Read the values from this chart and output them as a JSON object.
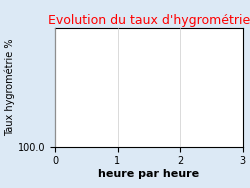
{
  "title": "Evolution du taux d'hygrométrie",
  "title_color": "#ff0000",
  "xlabel": "heure par heure",
  "ylabel": "Taux hygrométrie %",
  "background_color": "#dce9f5",
  "plot_bg_color": "#ffffff",
  "xlim": [
    0,
    3
  ],
  "ylim": [
    0,
    1
  ],
  "ylim_bottom_label": "100.0",
  "xticks": [
    0,
    1,
    2,
    3
  ],
  "grid_color": "#cccccc",
  "title_fontsize": 9,
  "xlabel_fontsize": 8,
  "ylabel_fontsize": 7,
  "tick_fontsize": 7
}
